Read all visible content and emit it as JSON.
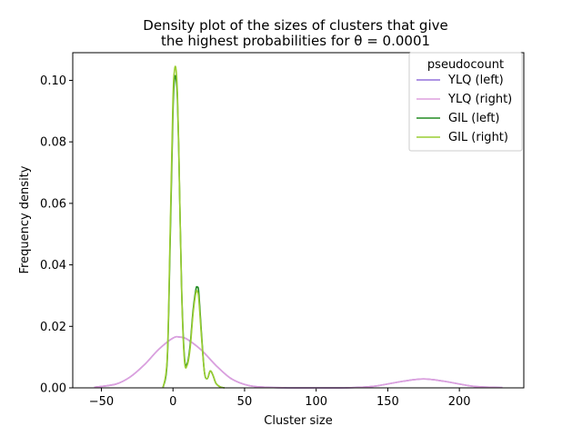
{
  "chart_data": {
    "type": "line",
    "title_line1": "Density plot of the sizes of clusters that give",
    "title_line2": "the highest probabilities for θ = 0.0001",
    "xlabel": "Cluster size",
    "ylabel": "Frequency density",
    "xlim": [
      -70,
      245
    ],
    "ylim": [
      0,
      0.109
    ],
    "xticks": [
      -50,
      0,
      50,
      100,
      150,
      200
    ],
    "xtick_labels": [
      "−50",
      "0",
      "50",
      "100",
      "150",
      "200"
    ],
    "yticks": [
      0,
      0.02,
      0.04,
      0.06,
      0.08,
      0.1
    ],
    "ytick_labels": [
      "0.00",
      "0.02",
      "0.04",
      "0.06",
      "0.08",
      "0.10"
    ],
    "grid": false,
    "legend": {
      "title": "pseudocount",
      "placement": "top-right",
      "entries": [
        "YLQ (left)",
        "YLQ (right)",
        "GIL (left)",
        "GIL (right)"
      ]
    },
    "series": [
      {
        "name": "YLQ (left)",
        "color": "#9370db",
        "x": [
          -55,
          -40,
          -30,
          -20,
          -10,
          0,
          5,
          10,
          20,
          30,
          40,
          50,
          60,
          80,
          100,
          120,
          140,
          160,
          175,
          190,
          210,
          230
        ],
        "y": [
          0.0002,
          0.0012,
          0.0035,
          0.0075,
          0.0125,
          0.0162,
          0.0165,
          0.0158,
          0.0122,
          0.0073,
          0.0032,
          0.0011,
          0.0003,
          0.0,
          0.0,
          0.0,
          0.0005,
          0.0021,
          0.0029,
          0.0021,
          0.0005,
          0.0001
        ]
      },
      {
        "name": "YLQ (right)",
        "color": "#dda0dd",
        "x": [
          -55,
          -40,
          -30,
          -20,
          -10,
          0,
          5,
          10,
          20,
          30,
          40,
          50,
          60,
          80,
          100,
          120,
          140,
          160,
          175,
          190,
          210,
          230
        ],
        "y": [
          0.0002,
          0.0012,
          0.0035,
          0.0075,
          0.0125,
          0.0162,
          0.0165,
          0.0158,
          0.0122,
          0.0073,
          0.0032,
          0.0011,
          0.0003,
          0.0,
          0.0,
          0.0,
          0.0005,
          0.0021,
          0.0029,
          0.0021,
          0.0005,
          0.0001
        ]
      },
      {
        "name": "GIL (left)",
        "color": "#228b22",
        "x": [
          -7,
          -4,
          -2,
          0,
          1,
          2,
          3,
          4,
          6,
          8,
          10,
          12,
          14,
          16,
          17,
          18,
          20,
          22,
          24,
          26,
          28,
          30,
          33,
          36
        ],
        "y": [
          0.0,
          0.009,
          0.047,
          0.09,
          0.1,
          0.101,
          0.095,
          0.078,
          0.033,
          0.01,
          0.008,
          0.014,
          0.025,
          0.032,
          0.0327,
          0.031,
          0.017,
          0.005,
          0.003,
          0.0055,
          0.004,
          0.0015,
          0.0003,
          0.0
        ]
      },
      {
        "name": "GIL (right)",
        "color": "#9acd32",
        "x": [
          -7,
          -4,
          -2,
          0,
          1,
          2,
          3,
          4,
          6,
          8,
          10,
          12,
          14,
          16,
          17,
          18,
          20,
          22,
          24,
          26,
          28,
          30,
          33,
          36
        ],
        "y": [
          0.0,
          0.01,
          0.05,
          0.094,
          0.103,
          0.104,
          0.097,
          0.079,
          0.032,
          0.009,
          0.0075,
          0.013,
          0.024,
          0.031,
          0.0312,
          0.029,
          0.016,
          0.005,
          0.003,
          0.0055,
          0.004,
          0.0015,
          0.0003,
          0.0
        ]
      }
    ]
  }
}
